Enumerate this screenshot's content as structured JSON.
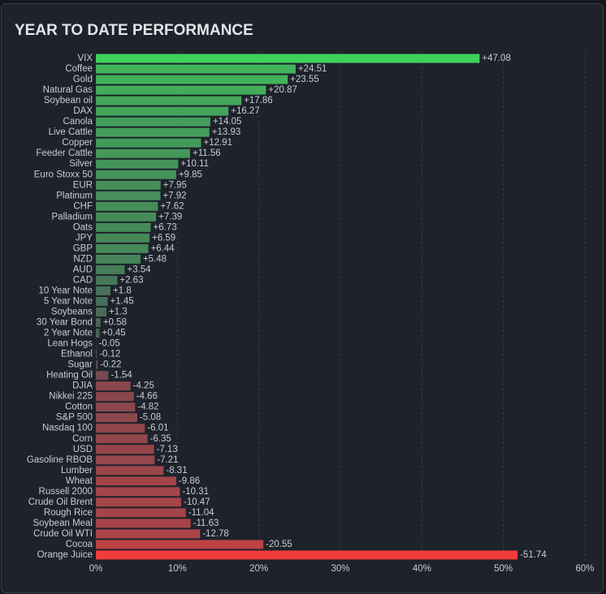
{
  "chart_data": {
    "type": "bar",
    "orientation": "horizontal",
    "title": "YEAR TO DATE PERFORMANCE",
    "categories": [
      "VIX",
      "Coffee",
      "Gold",
      "Natural Gas",
      "Soybean oil",
      "DAX",
      "Canola",
      "Live Cattle",
      "Copper",
      "Feeder Cattle",
      "Silver",
      "Euro Stoxx 50",
      "EUR",
      "Platinum",
      "CHF",
      "Palladium",
      "Oats",
      "JPY",
      "GBP",
      "NZD",
      "AUD",
      "CAD",
      "10 Year Note",
      "5 Year Note",
      "Soybeans",
      "30 Year Bond",
      "2 Year Note",
      "Lean Hogs",
      "Ethanol",
      "Sugar",
      "Heating Oil",
      "DJIA",
      "Nikkei 225",
      "Cotton",
      "S&P 500",
      "Nasdaq 100",
      "Corn",
      "USD",
      "Gasoline RBOB",
      "Lumber",
      "Wheat",
      "Russell 2000",
      "Crude Oil Brent",
      "Rough Rice",
      "Soybean Meal",
      "Crude Oil WTI",
      "Cocoa",
      "Orange Juice"
    ],
    "values": [
      47.08,
      24.51,
      23.55,
      20.87,
      17.86,
      16.27,
      14.05,
      13.93,
      12.91,
      11.56,
      10.11,
      9.85,
      7.95,
      7.92,
      7.62,
      7.39,
      6.73,
      6.59,
      6.44,
      5.48,
      3.54,
      2.63,
      1.8,
      1.45,
      1.3,
      0.58,
      0.45,
      -0.05,
      -0.12,
      -0.22,
      -1.54,
      -4.25,
      -4.66,
      -4.82,
      -5.08,
      -6.01,
      -6.35,
      -7.13,
      -7.21,
      -8.31,
      -9.86,
      -10.31,
      -10.47,
      -11.04,
      -11.63,
      -12.78,
      -20.55,
      -51.74
    ],
    "value_labels": [
      "+47.08",
      "+24.51",
      "+23.55",
      "+20.87",
      "+17.86",
      "+16.27",
      "+14.05",
      "+13.93",
      "+12.91",
      "+11.56",
      "+10.11",
      "+9.85",
      "+7.95",
      "+7.92",
      "+7.62",
      "+7.39",
      "+6.73",
      "+6.59",
      "+6.44",
      "+5.48",
      "+3.54",
      "+2.63",
      "+1.8",
      "+1.45",
      "+1.3",
      "+0.58",
      "+0.45",
      "-0.05",
      "-0.12",
      "-0.22",
      "-1.54",
      "-4.25",
      "-4.66",
      "-4.82",
      "-5.08",
      "-6.01",
      "-6.35",
      "-7.13",
      "-7.21",
      "-8.31",
      "-9.86",
      "-10.31",
      "-10.47",
      "-11.04",
      "-11.63",
      "-12.78",
      "-20.55",
      "-51.74"
    ],
    "xlim": [
      0,
      60
    ],
    "xticks": [
      {
        "value": 0,
        "label": "0%"
      },
      {
        "value": 10,
        "label": "10%"
      },
      {
        "value": 20,
        "label": "20%"
      },
      {
        "value": 30,
        "label": "30%"
      },
      {
        "value": 40,
        "label": "40%"
      },
      {
        "value": 50,
        "label": "50%"
      },
      {
        "value": 60,
        "label": "60%"
      }
    ],
    "grid": true,
    "positive_color": "#3fd05c",
    "negative_color": "#f23c3c",
    "neutral_color": "#4a4e57"
  }
}
